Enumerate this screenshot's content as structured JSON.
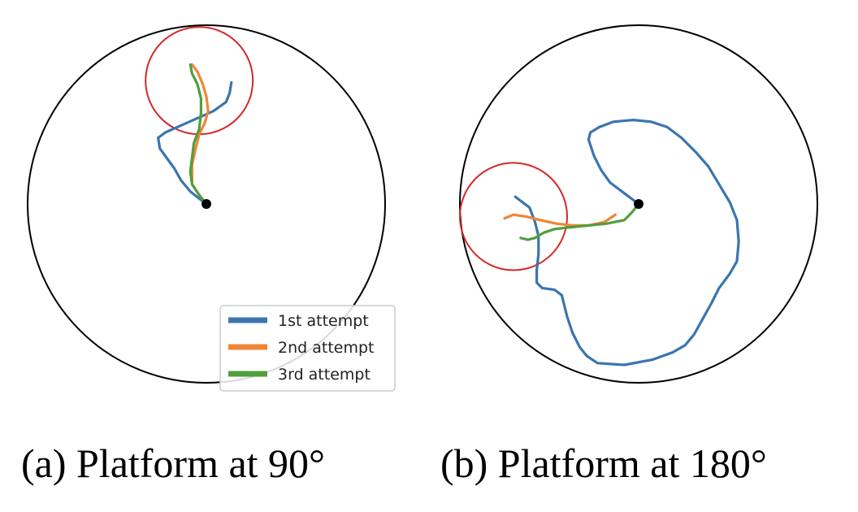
{
  "chart_data": [
    {
      "type": "line",
      "caption": "(a) Platform at 90°",
      "xlim": [
        -1,
        1
      ],
      "ylim": [
        -1,
        1
      ],
      "arena": {
        "center": [
          0,
          0
        ],
        "radius": 1.0,
        "color": "#000000"
      },
      "start": [
        0,
        0
      ],
      "platform": {
        "center": [
          -0.04,
          0.69
        ],
        "radius": 0.3,
        "color": "#d62728"
      },
      "legend": {
        "placement": "lower-right",
        "entries": [
          "1st attempt",
          "2nd attempt",
          "3rd attempt"
        ]
      },
      "series": [
        {
          "name": "1st attempt",
          "color": "#1f77b4",
          "points": [
            [
              0,
              0
            ],
            [
              -0.04,
              0.03
            ],
            [
              -0.09,
              0.07
            ],
            [
              -0.14,
              0.13
            ],
            [
              -0.18,
              0.2
            ],
            [
              -0.26,
              0.31
            ],
            [
              -0.27,
              0.37
            ],
            [
              -0.23,
              0.4
            ],
            [
              -0.14,
              0.44
            ],
            [
              -0.05,
              0.48
            ],
            [
              0.04,
              0.52
            ],
            [
              0.11,
              0.57
            ],
            [
              0.13,
              0.62
            ],
            [
              0.14,
              0.68
            ]
          ]
        },
        {
          "name": "2nd attempt",
          "color": "#ff7f0e",
          "points": [
            [
              0,
              0
            ],
            [
              -0.04,
              0.05
            ],
            [
              -0.08,
              0.11
            ],
            [
              -0.08,
              0.22
            ],
            [
              -0.06,
              0.31
            ],
            [
              -0.04,
              0.39
            ],
            [
              -0.01,
              0.45
            ],
            [
              0.01,
              0.52
            ],
            [
              0.0,
              0.6
            ],
            [
              -0.02,
              0.67
            ],
            [
              -0.05,
              0.74
            ],
            [
              -0.08,
              0.78
            ]
          ]
        },
        {
          "name": "3rd attempt",
          "color": "#2ca02c",
          "points": [
            [
              0,
              0
            ],
            [
              -0.04,
              0.05
            ],
            [
              -0.08,
              0.11
            ],
            [
              -0.09,
              0.18
            ],
            [
              -0.08,
              0.26
            ],
            [
              -0.07,
              0.34
            ],
            [
              -0.04,
              0.42
            ],
            [
              -0.03,
              0.51
            ],
            [
              -0.03,
              0.59
            ],
            [
              -0.05,
              0.67
            ],
            [
              -0.08,
              0.73
            ],
            [
              -0.09,
              0.78
            ]
          ]
        }
      ]
    },
    {
      "type": "line",
      "caption": "(b) Platform at 180°",
      "xlim": [
        -1,
        1
      ],
      "ylim": [
        -1,
        1
      ],
      "arena": {
        "center": [
          0,
          0
        ],
        "radius": 1.0,
        "color": "#000000"
      },
      "start": [
        0,
        0
      ],
      "platform": {
        "center": [
          -0.7,
          -0.07
        ],
        "radius": 0.3,
        "color": "#d62728"
      },
      "series": [
        {
          "name": "1st attempt",
          "color": "#1f77b4",
          "points": [
            [
              0,
              0
            ],
            [
              -0.08,
              0.06
            ],
            [
              -0.16,
              0.12
            ],
            [
              -0.21,
              0.19
            ],
            [
              -0.25,
              0.27
            ],
            [
              -0.28,
              0.36
            ],
            [
              -0.27,
              0.4
            ],
            [
              -0.22,
              0.43
            ],
            [
              -0.14,
              0.46
            ],
            [
              -0.03,
              0.47
            ],
            [
              0.07,
              0.46
            ],
            [
              0.16,
              0.43
            ],
            [
              0.24,
              0.37
            ],
            [
              0.32,
              0.29
            ],
            [
              0.39,
              0.21
            ],
            [
              0.45,
              0.11
            ],
            [
              0.51,
              0.01
            ],
            [
              0.55,
              -0.09
            ],
            [
              0.56,
              -0.21
            ],
            [
              0.55,
              -0.32
            ],
            [
              0.51,
              -0.39
            ],
            [
              0.45,
              -0.47
            ],
            [
              0.41,
              -0.55
            ],
            [
              0.36,
              -0.64
            ],
            [
              0.31,
              -0.73
            ],
            [
              0.26,
              -0.79
            ],
            [
              0.19,
              -0.83
            ],
            [
              0.08,
              -0.87
            ],
            [
              -0.08,
              -0.9
            ],
            [
              -0.23,
              -0.89
            ],
            [
              -0.29,
              -0.85
            ],
            [
              -0.33,
              -0.8
            ],
            [
              -0.37,
              -0.72
            ],
            [
              -0.4,
              -0.63
            ],
            [
              -0.43,
              -0.51
            ],
            [
              -0.47,
              -0.48
            ],
            [
              -0.54,
              -0.47
            ],
            [
              -0.57,
              -0.44
            ],
            [
              -0.57,
              -0.37
            ],
            [
              -0.56,
              -0.28
            ],
            [
              -0.56,
              -0.18
            ],
            [
              -0.58,
              -0.1
            ],
            [
              -0.61,
              -0.02
            ],
            [
              -0.69,
              0.04
            ]
          ]
        },
        {
          "name": "2nd attempt",
          "color": "#ff7f0e",
          "points": [
            [
              -0.75,
              -0.08
            ],
            [
              -0.7,
              -0.06
            ],
            [
              -0.63,
              -0.07
            ],
            [
              -0.55,
              -0.09
            ],
            [
              -0.46,
              -0.11
            ],
            [
              -0.37,
              -0.12
            ],
            [
              -0.28,
              -0.12
            ],
            [
              -0.19,
              -0.1
            ],
            [
              -0.13,
              -0.06
            ]
          ]
        },
        {
          "name": "3rd attempt",
          "color": "#2ca02c",
          "points": [
            [
              0,
              0
            ],
            [
              -0.04,
              -0.05
            ],
            [
              -0.08,
              -0.09
            ],
            [
              -0.18,
              -0.11
            ],
            [
              -0.28,
              -0.12
            ],
            [
              -0.38,
              -0.13
            ],
            [
              -0.47,
              -0.14
            ],
            [
              -0.53,
              -0.16
            ],
            [
              -0.58,
              -0.19
            ],
            [
              -0.62,
              -0.2
            ],
            [
              -0.66,
              -0.19
            ]
          ]
        }
      ]
    }
  ]
}
